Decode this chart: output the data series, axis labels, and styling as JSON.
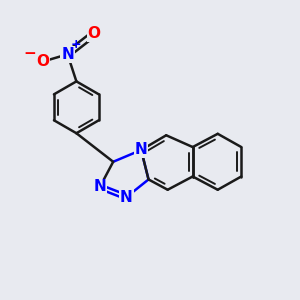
{
  "bg_color": "#e8eaf0",
  "bond_color": "#1a1a1a",
  "nitrogen_color": "#0000ff",
  "oxygen_color": "#ff0000",
  "bond_width": 1.8,
  "font_size_atom": 10,
  "font_size_charge": 8,
  "figsize": [
    3.0,
    3.0
  ],
  "dpi": 100,
  "xlim": [
    0,
    10
  ],
  "ylim": [
    0,
    10
  ]
}
